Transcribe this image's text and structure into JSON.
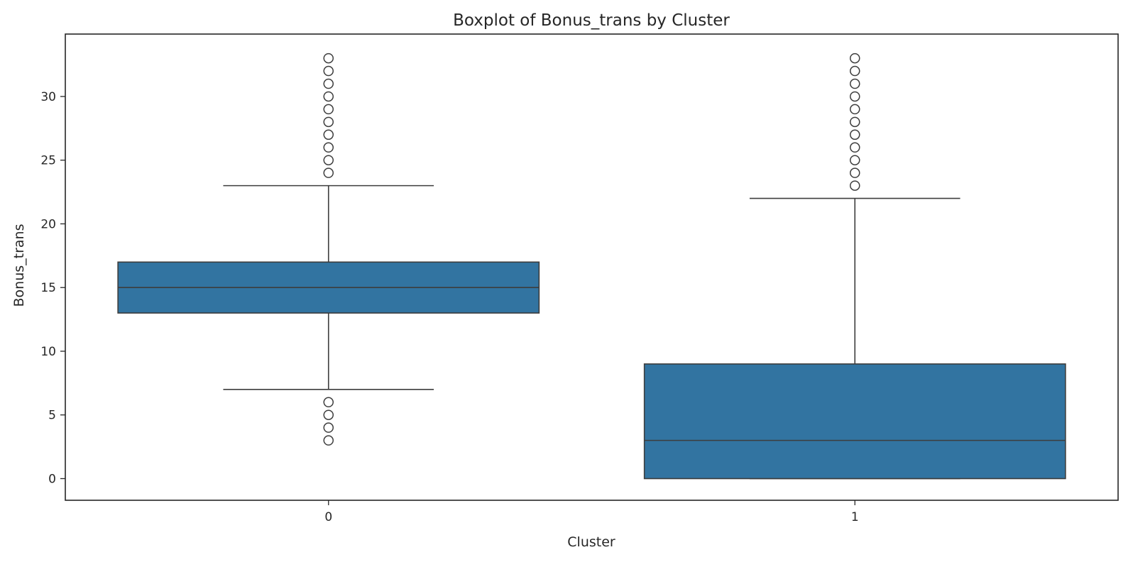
{
  "chart_data": {
    "type": "boxplot",
    "title": "Boxplot of Bonus_trans by Cluster",
    "xlabel": "Cluster",
    "ylabel": "Bonus_trans",
    "ylim": [
      -1.7,
      34.9
    ],
    "y_ticks": [
      0,
      5,
      10,
      15,
      20,
      25,
      30
    ],
    "box_color": "#3274a1",
    "edge_color": "#3d3d3d",
    "categories": [
      "0",
      "1"
    ],
    "boxes": [
      {
        "category": "0",
        "whisker_low": 7,
        "q1": 13,
        "median": 15,
        "q3": 17,
        "whisker_high": 23,
        "outliers": [
          3,
          4,
          5,
          6,
          24,
          25,
          26,
          27,
          28,
          29,
          30,
          31,
          32,
          33
        ]
      },
      {
        "category": "1",
        "whisker_low": 0,
        "q1": 0,
        "median": 3,
        "q3": 9,
        "whisker_high": 22,
        "outliers": [
          23,
          24,
          25,
          26,
          27,
          28,
          29,
          30,
          31,
          32,
          33
        ]
      }
    ]
  }
}
